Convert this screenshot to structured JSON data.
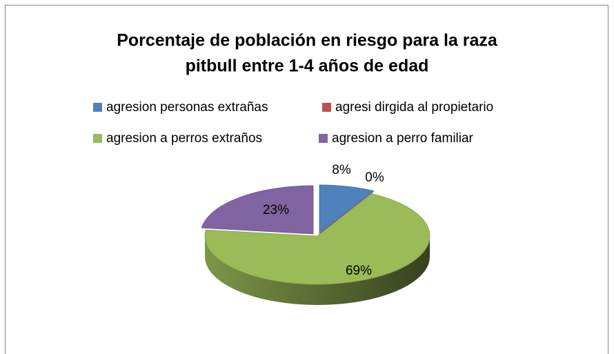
{
  "chart_data": {
    "type": "pie",
    "title": [
      "Porcentaje de población en riesgo para la raza",
      "pitbull entre 1-4 años de edad"
    ],
    "categories": [
      "agresion personas extrañas",
      "agresi dirgida al propietario",
      "agresion a perros extraños",
      "agresion a perro familiar"
    ],
    "values": [
      8,
      0,
      69,
      23
    ],
    "value_labels": [
      "8%",
      "0%",
      "69%",
      "23%"
    ],
    "colors": [
      "#4f81bd",
      "#c0504d",
      "#9bbb59",
      "#8064a2"
    ],
    "legend": "top"
  }
}
